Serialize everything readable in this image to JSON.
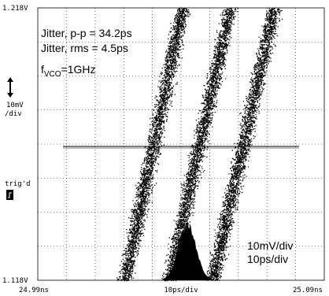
{
  "screen": {
    "y_top_label": "1.218V",
    "y_bottom_label": "1.118V",
    "x_left_label": "24.99ns",
    "x_center_label": "10ps/div",
    "x_right_label": "25.09ns",
    "scale_label": [
      "10mV",
      "/div"
    ],
    "trigger_label": "trig'd",
    "annotations": {
      "jitter_pp": "Jitter, p-p = 34.2ps",
      "jitter_rms": "Jitter, rms = 4.5ps",
      "fvco_main": "f",
      "fvco_sub": "VCO",
      "fvco_value": "=1GHz",
      "vertical_scale": "10mV/div",
      "horizontal_scale": "10ps/div"
    }
  }
}
